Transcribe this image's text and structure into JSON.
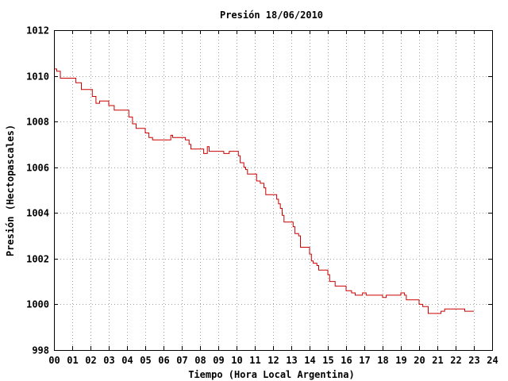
{
  "chart_data": {
    "type": "line",
    "title": "Presión 18/06/2010",
    "xlabel": "Tiempo (Hora Local Argentina)",
    "ylabel": "Presión (Hectopascales)",
    "xlim": [
      0,
      24
    ],
    "ylim": [
      998,
      1012
    ],
    "grid": true,
    "x_ticks": [
      "00",
      "01",
      "02",
      "03",
      "04",
      "05",
      "06",
      "07",
      "08",
      "09",
      "10",
      "11",
      "12",
      "13",
      "14",
      "15",
      "16",
      "17",
      "18",
      "19",
      "20",
      "21",
      "22",
      "23",
      "24"
    ],
    "y_ticks": [
      "998",
      "1000",
      "1002",
      "1004",
      "1006",
      "1008",
      "1010",
      "1012"
    ],
    "series": [
      {
        "color": "#cc0000",
        "points": [
          [
            0.0,
            1010.3
          ],
          [
            0.15,
            1010.3
          ],
          [
            0.15,
            1010.2
          ],
          [
            0.35,
            1010.2
          ],
          [
            0.35,
            1009.9
          ],
          [
            1.2,
            1009.9
          ],
          [
            1.2,
            1009.7
          ],
          [
            1.5,
            1009.7
          ],
          [
            1.5,
            1009.4
          ],
          [
            2.1,
            1009.4
          ],
          [
            2.1,
            1009.1
          ],
          [
            2.3,
            1009.1
          ],
          [
            2.3,
            1008.8
          ],
          [
            2.5,
            1008.8
          ],
          [
            2.5,
            1008.9
          ],
          [
            3.0,
            1008.9
          ],
          [
            3.0,
            1008.7
          ],
          [
            3.3,
            1008.7
          ],
          [
            3.3,
            1008.5
          ],
          [
            4.1,
            1008.5
          ],
          [
            4.1,
            1008.2
          ],
          [
            4.3,
            1008.2
          ],
          [
            4.3,
            1007.9
          ],
          [
            4.5,
            1007.9
          ],
          [
            4.5,
            1007.7
          ],
          [
            5.0,
            1007.7
          ],
          [
            5.0,
            1007.5
          ],
          [
            5.2,
            1007.5
          ],
          [
            5.2,
            1007.3
          ],
          [
            5.4,
            1007.3
          ],
          [
            5.4,
            1007.2
          ],
          [
            6.4,
            1007.2
          ],
          [
            6.4,
            1007.4
          ],
          [
            6.5,
            1007.4
          ],
          [
            6.5,
            1007.3
          ],
          [
            7.2,
            1007.3
          ],
          [
            7.2,
            1007.2
          ],
          [
            7.4,
            1007.2
          ],
          [
            7.4,
            1007.0
          ],
          [
            7.5,
            1007.0
          ],
          [
            7.5,
            1006.8
          ],
          [
            8.2,
            1006.8
          ],
          [
            8.2,
            1006.6
          ],
          [
            8.4,
            1006.6
          ],
          [
            8.4,
            1006.9
          ],
          [
            8.5,
            1006.9
          ],
          [
            8.5,
            1006.7
          ],
          [
            9.3,
            1006.7
          ],
          [
            9.3,
            1006.6
          ],
          [
            9.6,
            1006.6
          ],
          [
            9.6,
            1006.7
          ],
          [
            10.1,
            1006.7
          ],
          [
            10.1,
            1006.5
          ],
          [
            10.2,
            1006.5
          ],
          [
            10.2,
            1006.2
          ],
          [
            10.4,
            1006.2
          ],
          [
            10.4,
            1006.0
          ],
          [
            10.5,
            1006.0
          ],
          [
            10.5,
            1005.9
          ],
          [
            10.6,
            1005.9
          ],
          [
            10.6,
            1005.7
          ],
          [
            11.1,
            1005.7
          ],
          [
            11.1,
            1005.4
          ],
          [
            11.3,
            1005.4
          ],
          [
            11.3,
            1005.3
          ],
          [
            11.5,
            1005.3
          ],
          [
            11.5,
            1005.1
          ],
          [
            11.6,
            1005.1
          ],
          [
            11.6,
            1004.8
          ],
          [
            12.2,
            1004.8
          ],
          [
            12.2,
            1004.6
          ],
          [
            12.3,
            1004.6
          ],
          [
            12.3,
            1004.4
          ],
          [
            12.4,
            1004.4
          ],
          [
            12.4,
            1004.2
          ],
          [
            12.5,
            1004.2
          ],
          [
            12.5,
            1003.9
          ],
          [
            12.6,
            1003.9
          ],
          [
            12.6,
            1003.6
          ],
          [
            13.1,
            1003.6
          ],
          [
            13.1,
            1003.4
          ],
          [
            13.2,
            1003.4
          ],
          [
            13.2,
            1003.1
          ],
          [
            13.4,
            1003.1
          ],
          [
            13.4,
            1003.0
          ],
          [
            13.5,
            1003.0
          ],
          [
            13.5,
            1002.5
          ],
          [
            14.0,
            1002.5
          ],
          [
            14.0,
            1002.2
          ],
          [
            14.1,
            1002.2
          ],
          [
            14.1,
            1001.9
          ],
          [
            14.2,
            1001.9
          ],
          [
            14.2,
            1001.8
          ],
          [
            14.4,
            1001.8
          ],
          [
            14.4,
            1001.7
          ],
          [
            14.5,
            1001.7
          ],
          [
            14.5,
            1001.5
          ],
          [
            15.0,
            1001.5
          ],
          [
            15.0,
            1001.3
          ],
          [
            15.1,
            1001.3
          ],
          [
            15.1,
            1001.0
          ],
          [
            15.4,
            1001.0
          ],
          [
            15.4,
            1000.8
          ],
          [
            16.0,
            1000.8
          ],
          [
            16.0,
            1000.6
          ],
          [
            16.3,
            1000.6
          ],
          [
            16.3,
            1000.5
          ],
          [
            16.5,
            1000.5
          ],
          [
            16.5,
            1000.4
          ],
          [
            16.9,
            1000.4
          ],
          [
            16.9,
            1000.5
          ],
          [
            17.1,
            1000.5
          ],
          [
            17.1,
            1000.4
          ],
          [
            18.0,
            1000.4
          ],
          [
            18.0,
            1000.3
          ],
          [
            18.2,
            1000.3
          ],
          [
            18.2,
            1000.4
          ],
          [
            19.0,
            1000.4
          ],
          [
            19.0,
            1000.5
          ],
          [
            19.2,
            1000.5
          ],
          [
            19.2,
            1000.4
          ],
          [
            19.3,
            1000.4
          ],
          [
            19.3,
            1000.2
          ],
          [
            20.0,
            1000.2
          ],
          [
            20.0,
            1000.0
          ],
          [
            20.2,
            1000.0
          ],
          [
            20.2,
            999.9
          ],
          [
            20.5,
            999.9
          ],
          [
            20.5,
            999.6
          ],
          [
            21.2,
            999.6
          ],
          [
            21.2,
            999.7
          ],
          [
            21.4,
            999.7
          ],
          [
            21.4,
            999.8
          ],
          [
            22.5,
            999.8
          ],
          [
            22.5,
            999.7
          ],
          [
            23.0,
            999.7
          ]
        ]
      }
    ]
  }
}
